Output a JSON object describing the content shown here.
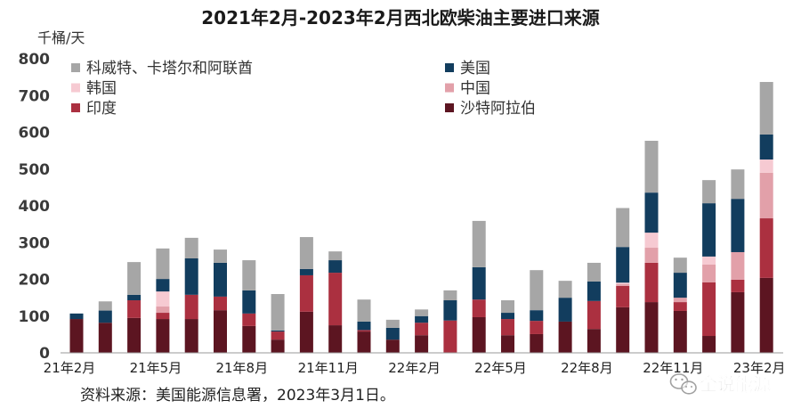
{
  "source": "资料来源：美国能源信息署，2023年3月1日。",
  "watermark": "全说能源",
  "chart_data": {
    "type": "bar",
    "stacked": true,
    "title": "2021年2月-2023年2月西北欧柴油主要进口来源",
    "ylabel": "千桶/天",
    "ylim": [
      0,
      800
    ],
    "yticks": [
      0,
      100,
      200,
      300,
      400,
      500,
      600,
      700,
      800
    ],
    "grid": false,
    "legend_position": "top",
    "categories": [
      "21年2月",
      "",
      "",
      "21年5月",
      "",
      "",
      "21年8月",
      "",
      "",
      "21年11月",
      "",
      "",
      "22年2月",
      "",
      "",
      "22年5月",
      "",
      "",
      "22年8月",
      "",
      "",
      "22年11月",
      "",
      "",
      "23年2月"
    ],
    "series": [
      {
        "name": "沙特阿拉伯",
        "color": "#5c1521",
        "values": [
          92,
          82,
          95,
          92,
          92,
          116,
          73,
          36,
          112,
          75,
          58,
          36,
          48,
          0,
          97,
          48,
          51,
          85,
          65,
          124,
          138,
          114,
          46,
          165,
          204
        ]
      },
      {
        "name": "印度",
        "color": "#ab3040",
        "values": [
          0,
          0,
          48,
          17,
          66,
          37,
          34,
          22,
          99,
          143,
          4,
          0,
          34,
          88,
          48,
          44,
          36,
          0,
          76,
          58,
          107,
          24,
          146,
          34,
          162
        ]
      },
      {
        "name": "中国",
        "color": "#e2a0a9",
        "values": [
          0,
          0,
          0,
          17,
          0,
          0,
          0,
          0,
          0,
          0,
          0,
          0,
          0,
          0,
          0,
          0,
          0,
          0,
          0,
          5,
          41,
          12,
          48,
          75,
          124
        ]
      },
      {
        "name": "韩国",
        "color": "#f6cad2",
        "values": [
          0,
          0,
          0,
          41,
          0,
          0,
          0,
          0,
          0,
          0,
          0,
          0,
          0,
          0,
          0,
          0,
          0,
          0,
          0,
          4,
          41,
          0,
          22,
          0,
          36
        ]
      },
      {
        "name": "美国",
        "color": "#123d5e",
        "values": [
          15,
          33,
          15,
          34,
          99,
          92,
          63,
          3,
          17,
          34,
          23,
          32,
          18,
          55,
          88,
          17,
          29,
          65,
          53,
          97,
          109,
          68,
          145,
          145,
          68
        ]
      },
      {
        "name": "科威特、卡塔尔和阿联酋",
        "color": "#a6a6a6",
        "values": [
          0,
          25,
          89,
          83,
          56,
          36,
          82,
          99,
          87,
          24,
          60,
          22,
          18,
          27,
          126,
          34,
          109,
          46,
          51,
          106,
          141,
          41,
          63,
          80,
          143
        ]
      }
    ]
  }
}
